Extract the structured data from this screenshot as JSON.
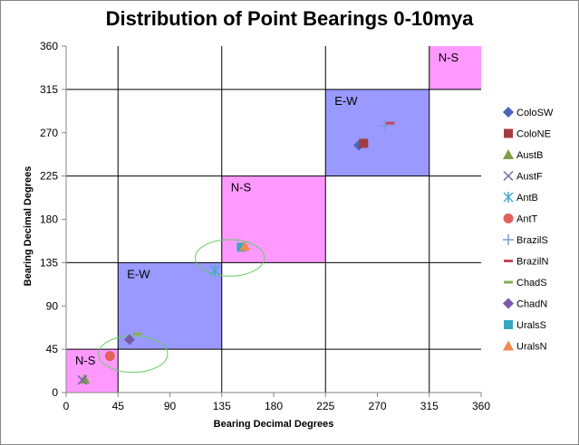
{
  "chart_data": {
    "type": "scatter",
    "title": "Distribution of Point Bearings 0-10mya",
    "xlabel": "Bearing Decimal Degrees",
    "ylabel": "Bearing Decimal Degrees",
    "xlim": [
      0,
      360
    ],
    "ylim": [
      0,
      360
    ],
    "xticks": [
      0,
      45,
      90,
      135,
      180,
      225,
      270,
      315,
      360
    ],
    "yticks": [
      0,
      45,
      90,
      135,
      180,
      225,
      270,
      315,
      360
    ],
    "grid": "major gridlines at x = 45, 135, 225, 315 and y = 45, 135, 225, 315",
    "legend_position": "right",
    "regions": [
      {
        "label": "N-S",
        "x": [
          0,
          45
        ],
        "y": [
          0,
          45
        ],
        "color": "#ff99ff"
      },
      {
        "label": "E-W",
        "x": [
          45,
          135
        ],
        "y": [
          45,
          135
        ],
        "color": "#9999ff"
      },
      {
        "label": "N-S",
        "x": [
          135,
          225
        ],
        "y": [
          135,
          225
        ],
        "color": "#ff99ff"
      },
      {
        "label": "E-W",
        "x": [
          225,
          315
        ],
        "y": [
          225,
          315
        ],
        "color": "#9999ff"
      },
      {
        "label": "N-S",
        "x": [
          315,
          360
        ],
        "y": [
          315,
          360
        ],
        "color": "#ff99ff"
      }
    ],
    "ellipses": [
      {
        "cx": 58,
        "cy": 40,
        "rx": 30,
        "ry": 19,
        "color": "#66cc66"
      },
      {
        "cx": 142,
        "cy": 140,
        "rx": 30,
        "ry": 19,
        "color": "#66cc66"
      }
    ],
    "series": [
      {
        "name": "ColoSW",
        "marker": "diamond",
        "color": "#4a66b8",
        "points": [
          [
            254,
            257
          ]
        ]
      },
      {
        "name": "ColoNE",
        "marker": "square",
        "color": "#a33c40",
        "points": [
          [
            258,
            259
          ]
        ]
      },
      {
        "name": "AustB",
        "marker": "triangle",
        "color": "#829c48",
        "points": [
          [
            16,
            14
          ]
        ]
      },
      {
        "name": "AustF",
        "marker": "x",
        "color": "#7a66a8",
        "points": [
          [
            14,
            13
          ]
        ]
      },
      {
        "name": "AntB",
        "marker": "asterisk",
        "color": "#4aa8d0",
        "points": [
          [
            129,
            127
          ]
        ]
      },
      {
        "name": "AntT",
        "marker": "circle",
        "color": "#e0625a",
        "points": [
          [
            38,
            38
          ]
        ]
      },
      {
        "name": "BrazilS",
        "marker": "plus",
        "color": "#7c9ad6",
        "points": [
          [
            276,
            277
          ]
        ]
      },
      {
        "name": "BrazilN",
        "marker": "dash",
        "color": "#c04a5a",
        "points": [
          [
            281,
            280
          ]
        ]
      },
      {
        "name": "ChadS",
        "marker": "dash",
        "color": "#8aaa5a",
        "points": [
          [
            62,
            61
          ]
        ]
      },
      {
        "name": "ChadN",
        "marker": "diamond",
        "color": "#7a5aa8",
        "points": [
          [
            55,
            55
          ]
        ]
      },
      {
        "name": "UralsS",
        "marker": "square",
        "color": "#38a8c0",
        "points": [
          [
            152,
            151
          ]
        ]
      },
      {
        "name": "UralsN",
        "marker": "triangle",
        "color": "#f08a50",
        "points": [
          [
            155,
            152
          ]
        ]
      }
    ]
  }
}
